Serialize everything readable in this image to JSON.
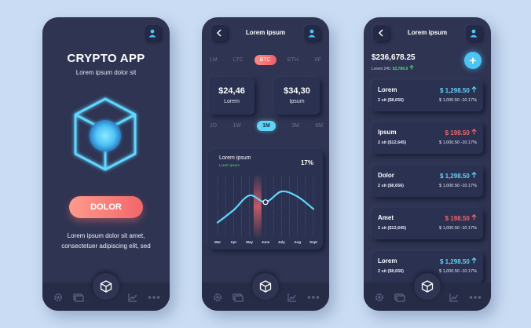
{
  "colors": {
    "background": "#c9dcf3",
    "phone": "#2e3452",
    "accent_blue": "#61d3f5",
    "accent_red": "#f2676a",
    "accent_green": "#4fd58a"
  },
  "phone1": {
    "title": "CRYPTO APP",
    "subtitle": "Lorem ipsum dolor sit",
    "cta_label": "DOLOR",
    "description": "Lorem ipsum dolor sit amet, consectetuer adipiscing elit, sed",
    "icons": [
      "user-icon",
      "crypto-cube-icon"
    ]
  },
  "phone2": {
    "screen_title": "Lorem ipsum",
    "coin_tabs": [
      "LM",
      "LTC",
      "BTC",
      "ETH",
      "XF"
    ],
    "active_coin": "BTC",
    "cards": [
      {
        "value": "$24,46",
        "label": "Lorem"
      },
      {
        "value": "$34,30",
        "label": "Ipsum"
      }
    ],
    "range_tabs": [
      "1D",
      "1W",
      "1M",
      "3M",
      "6M"
    ],
    "active_range": "1M",
    "chart": {
      "title": "Lorem ipsum",
      "subtitle": "Lorem ipsum",
      "percent": "17%"
    }
  },
  "chart_data": {
    "type": "line",
    "title": "Lorem ipsum",
    "categories": [
      "Mar",
      "Apr",
      "May",
      "June",
      "July",
      "Aug",
      "Sept"
    ],
    "values": [
      0.2,
      0.42,
      0.68,
      0.56,
      0.75,
      0.66,
      0.44
    ],
    "highlighted_category": "June",
    "ylim": [
      0,
      1
    ],
    "grid": "vertical-dashed"
  },
  "phone3": {
    "screen_title": "Lorem ipsum",
    "balance": "$236,678.25",
    "change_label": "Lorem 24h:",
    "change_value": "$3,786.9",
    "fab_label": "+",
    "coins": [
      {
        "name": "Lorem",
        "price": "$ 1,298.50",
        "direction": "up",
        "color": "#61d3f5",
        "held": "2 sit ($8,656)",
        "change": "$ 1,000.50 -10.17%"
      },
      {
        "name": "Ipsum",
        "price": "$ 198.50",
        "direction": "up",
        "color": "#f2676a",
        "held": "2 sit ($12,645)",
        "change": "$ 1,000.50 -10.17%"
      },
      {
        "name": "Dolor",
        "price": "$ 1,298.50",
        "direction": "up",
        "color": "#61d3f5",
        "held": "2 sit ($8,656)",
        "change": "$ 1,000.50 -10.17%"
      },
      {
        "name": "Amet",
        "price": "$ 198.50",
        "direction": "up",
        "color": "#f2676a",
        "held": "2 sit ($12,645)",
        "change": "$ 1,000.50 -10.17%"
      },
      {
        "name": "Lorem",
        "price": "$ 1,298.50",
        "direction": "up",
        "color": "#61d3f5",
        "held": "2 sit ($8,656)",
        "change": "$ 1,000.50 -10.17%"
      }
    ]
  },
  "navbar": {
    "icons": [
      "gear-icon",
      "wallet-icon",
      "cube-icon",
      "chart-icon",
      "more-icon"
    ]
  }
}
